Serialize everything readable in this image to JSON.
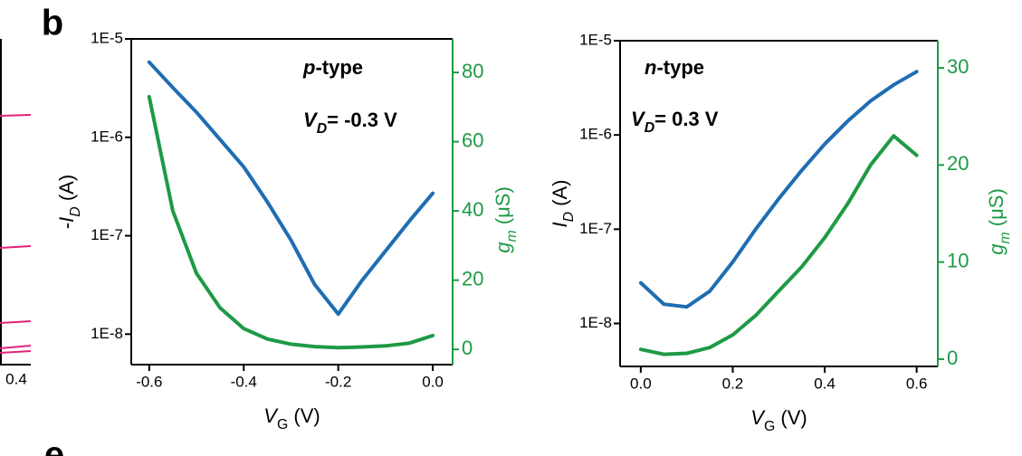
{
  "labels": {
    "panel_b": "b",
    "panel_e": "e",
    "left_tick": "0.4"
  },
  "chart_data": [
    {
      "type": "line",
      "log_y": true,
      "annotations": [
        [
          {
            "text": "p",
            "italic": true
          },
          {
            "text": "-type"
          }
        ],
        [
          {
            "text": "V",
            "italic": true
          },
          {
            "text": "D",
            "italic": true,
            "sub": true
          },
          {
            "text": "= -0.3 V"
          }
        ]
      ],
      "xlabel": [
        {
          "text": "V",
          "italic": true
        },
        {
          "text": "G",
          "sub": true
        },
        {
          "text": " (V)"
        }
      ],
      "ylabel": [
        {
          "text": "-"
        },
        {
          "text": "I",
          "italic": true
        },
        {
          "text": "D",
          "italic": true,
          "sub": true
        },
        {
          "text": " (A)"
        }
      ],
      "y2label": [
        {
          "text": "g",
          "italic": true
        },
        {
          "text": "m",
          "italic": true,
          "sub": true
        },
        {
          "text": " (μS)"
        }
      ],
      "x": [
        -0.6,
        -0.55,
        -0.5,
        -0.45,
        -0.4,
        -0.35,
        -0.3,
        -0.25,
        -0.2,
        -0.15,
        -0.1,
        -0.05,
        0.0
      ],
      "xlim": [
        -0.638,
        0.042
      ],
      "xticks": [
        -0.6,
        -0.4,
        -0.2,
        {
          "value": 0,
          "label": "0.0"
        }
      ],
      "ylim": [
        4.9e-09,
        1e-05
      ],
      "yticks": [
        {
          "value": 1e-05,
          "label": "1E-5"
        },
        {
          "value": 1e-06,
          "label": "1E-6"
        },
        {
          "value": 1e-07,
          "label": "1E-7"
        },
        {
          "value": 1e-08,
          "label": "1E-8"
        }
      ],
      "y2lim": [
        -4.4,
        89.7
      ],
      "y2ticks": [
        0,
        20,
        40,
        60,
        80
      ],
      "y2color": "#1e9a45",
      "series": [
        {
          "color": "#1f6db3",
          "values": [
            5.8e-06,
            3.2e-06,
            1.8e-06,
            9.5e-07,
            5e-07,
            2.2e-07,
            9e-08,
            3.2e-08,
            1.6e-08,
            3.5e-08,
            7e-08,
            1.4e-07,
            2.7e-07
          ]
        },
        {
          "color": "#1e9a45",
          "axis": "y2",
          "values": [
            73,
            40,
            22,
            12,
            6,
            3,
            1.5,
            0.8,
            0.5,
            0.7,
            1,
            1.8,
            4
          ]
        }
      ]
    },
    {
      "type": "line",
      "log_y": true,
      "annotations": [
        [
          {
            "text": "n",
            "italic": true
          },
          {
            "text": "-type"
          }
        ],
        [
          {
            "text": "V",
            "italic": true
          },
          {
            "text": "D",
            "italic": true,
            "sub": true
          },
          {
            "text": "= 0.3 V"
          }
        ]
      ],
      "xlabel": [
        {
          "text": "V",
          "italic": true
        },
        {
          "text": "G",
          "sub": true
        },
        {
          "text": " (V)"
        }
      ],
      "ylabel": [
        {
          "text": "I",
          "italic": true
        },
        {
          "text": "D",
          "italic": true,
          "sub": true
        },
        {
          "text": " (A)"
        }
      ],
      "y2label": [
        {
          "text": "g",
          "italic": true
        },
        {
          "text": "m",
          "italic": true,
          "sub": true
        },
        {
          "text": " (μS)"
        }
      ],
      "x": [
        0.0,
        0.05,
        0.1,
        0.15,
        0.2,
        0.25,
        0.3,
        0.35,
        0.4,
        0.45,
        0.5,
        0.55,
        0.6
      ],
      "xlim": [
        -0.045,
        0.646
      ],
      "xticks": [
        {
          "value": 0,
          "label": "0.0"
        },
        0.2,
        0.4,
        0.6
      ],
      "ylim": [
        3.5e-09,
        1e-05
      ],
      "yticks": [
        {
          "value": 1e-05,
          "label": "1E-5"
        },
        {
          "value": 1e-06,
          "label": "1E-6"
        },
        {
          "value": 1e-07,
          "label": "1E-7"
        },
        {
          "value": 1e-08,
          "label": "1E-8"
        }
      ],
      "y2lim": [
        -0.75,
        32.8
      ],
      "y2ticks": [
        0,
        10,
        20,
        30
      ],
      "y2color": "#1e9a45",
      "series": [
        {
          "color": "#1f6db3",
          "values": [
            2.7e-08,
            1.6e-08,
            1.5e-08,
            2.2e-08,
            4.5e-08,
            1e-07,
            2.1e-07,
            4.2e-07,
            8e-07,
            1.4e-06,
            2.3e-06,
            3.4e-06,
            4.7e-06
          ]
        },
        {
          "color": "#1e9a45",
          "axis": "y2",
          "values": [
            1,
            0.5,
            0.6,
            1.2,
            2.5,
            4.5,
            7,
            9.5,
            12.5,
            16,
            20,
            23,
            21
          ]
        }
      ]
    }
  ]
}
